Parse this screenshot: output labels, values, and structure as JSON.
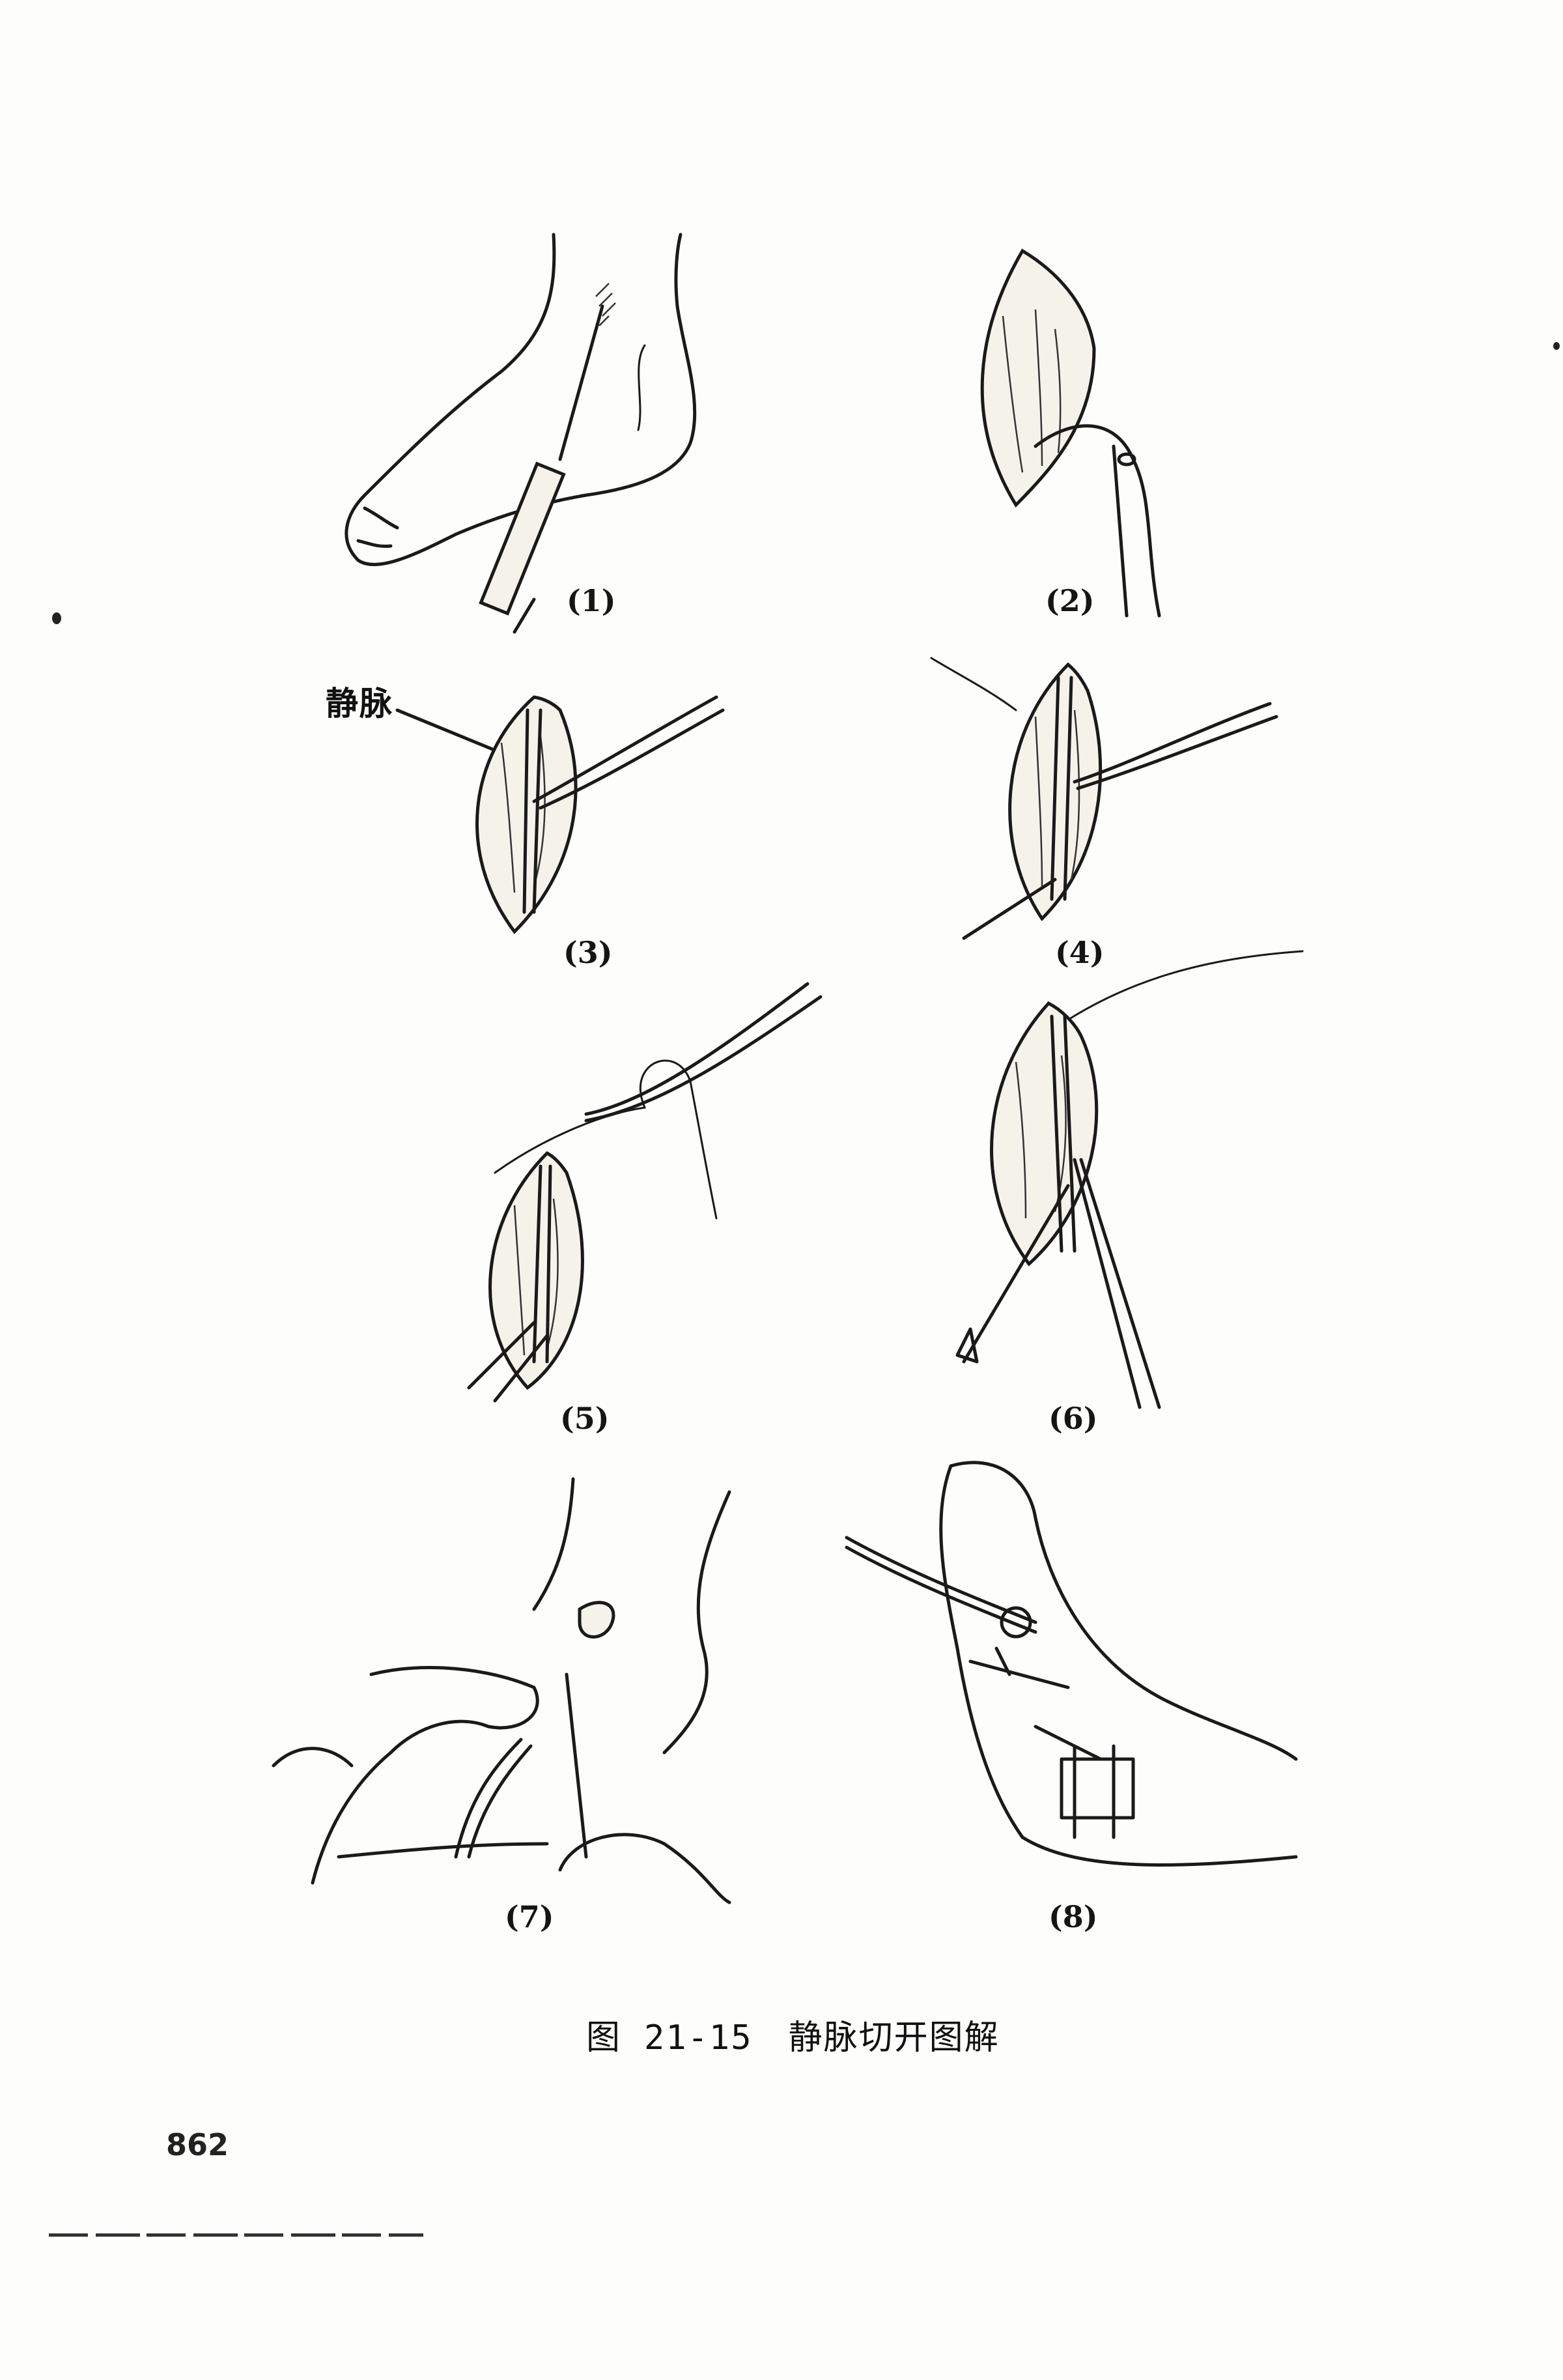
{
  "figure": {
    "panels": [
      {
        "id": "1",
        "label": "(1)"
      },
      {
        "id": "2",
        "label": "(2)"
      },
      {
        "id": "3",
        "label": "(3)"
      },
      {
        "id": "4",
        "label": "(4)"
      },
      {
        "id": "5",
        "label": "(5)"
      },
      {
        "id": "6",
        "label": "(6)"
      },
      {
        "id": "7",
        "label": "(7)"
      },
      {
        "id": "8",
        "label": "(8)"
      }
    ],
    "vein_label": "静脉",
    "caption": {
      "prefix": "图",
      "number": "21-15",
      "title": "静脉切开图解"
    }
  },
  "page_number": "862"
}
